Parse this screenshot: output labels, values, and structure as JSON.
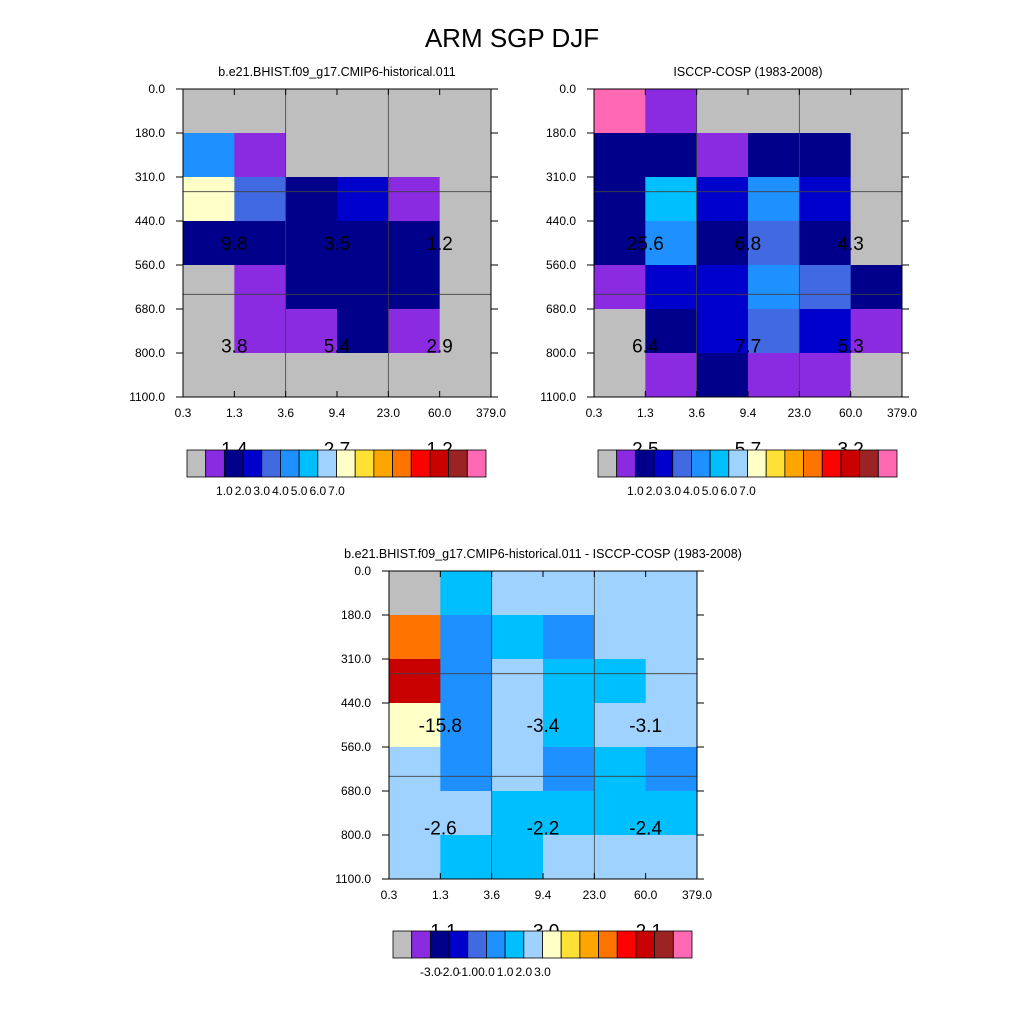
{
  "figure": {
    "title": "ARM SGP DJF"
  },
  "x_ticks": [
    "0.3",
    "1.3",
    "3.6",
    "9.4",
    "23.0",
    "60.0",
    "379.0"
  ],
  "y_ticks": [
    "0.0",
    "180.0",
    "310.0",
    "440.0",
    "560.0",
    "680.0",
    "800.0",
    "1100.0"
  ],
  "colorbars": {
    "abs": {
      "colors": [
        "#BEBEBE",
        "#8A2BE2",
        "#00008B",
        "#0000CD",
        "#4169E1",
        "#1E90FF",
        "#00BFFF",
        "#A0D2FF",
        "#FFFFC8",
        "#FFE135",
        "#FFA500",
        "#FF7300",
        "#FF0000",
        "#C80000",
        "#9B2323",
        "#FF69B4"
      ],
      "labels": [
        "1.0",
        "2.0",
        "3.0",
        "4.0",
        "5.0",
        "6.0",
        "7.0"
      ]
    },
    "diff": {
      "colors": [
        "#BEBEBE",
        "#8A2BE2",
        "#00008B",
        "#0000CD",
        "#4169E1",
        "#1E90FF",
        "#00BFFF",
        "#A0D2FF",
        "#FFFFC8",
        "#FFE135",
        "#FFA500",
        "#FF7300",
        "#FF0000",
        "#C80000",
        "#9B2323",
        "#FF69B4"
      ],
      "labels": [
        "-3.0",
        "-2.0",
        "-1.0",
        "0.0",
        "1.0",
        "2.0",
        "3.0"
      ]
    }
  },
  "chart_data": [
    {
      "type": "heatmap",
      "title": "b.e21.BHIST.f09_g17.CMIP6-historical.011",
      "colorbar": "abs",
      "x_bins": [
        "0.3",
        "1.3",
        "3.6",
        "9.4",
        "23.0",
        "60.0",
        "379.0"
      ],
      "y_bins": [
        "0.0",
        "180.0",
        "310.0",
        "440.0",
        "560.0",
        "680.0",
        "800.0",
        "1100.0"
      ],
      "cells": [
        [
          0,
          0,
          0,
          0,
          0,
          0
        ],
        [
          5,
          1,
          0,
          0,
          0,
          0
        ],
        [
          8,
          4,
          2,
          3,
          1,
          0
        ],
        [
          2,
          2,
          2,
          2,
          2,
          0
        ],
        [
          0,
          1,
          2,
          2,
          2,
          0
        ],
        [
          0,
          1,
          1,
          2,
          1,
          0
        ],
        [
          0,
          0,
          0,
          0,
          0,
          0
        ]
      ],
      "values": [
        {
          "label": "9.8",
          "col": 0,
          "row": 1
        },
        {
          "label": "3.5",
          "col": 1,
          "row": 1
        },
        {
          "label": "1.2",
          "col": 2,
          "row": 1
        },
        {
          "label": "3.8",
          "col": 0,
          "row": 2
        },
        {
          "label": "5.4",
          "col": 1,
          "row": 2
        },
        {
          "label": "2.9",
          "col": 2,
          "row": 2
        },
        {
          "label": "1.4",
          "col": 0,
          "row": 3
        },
        {
          "label": "2.7",
          "col": 1,
          "row": 3
        },
        {
          "label": "1.2",
          "col": 2,
          "row": 3
        }
      ]
    },
    {
      "type": "heatmap",
      "title": "ISCCP-COSP (1983-2008)",
      "colorbar": "abs",
      "x_bins": [
        "0.3",
        "1.3",
        "3.6",
        "9.4",
        "23.0",
        "60.0",
        "379.0"
      ],
      "y_bins": [
        "0.0",
        "180.0",
        "310.0",
        "440.0",
        "560.0",
        "680.0",
        "800.0",
        "1100.0"
      ],
      "cells": [
        [
          15,
          1,
          0,
          0,
          0,
          0
        ],
        [
          2,
          2,
          1,
          2,
          2,
          0
        ],
        [
          2,
          6,
          3,
          5,
          3,
          0
        ],
        [
          2,
          5,
          2,
          4,
          2,
          0
        ],
        [
          1,
          3,
          3,
          5,
          4,
          2
        ],
        [
          0,
          2,
          3,
          4,
          3,
          1
        ],
        [
          0,
          1,
          2,
          1,
          1,
          0
        ]
      ],
      "values": [
        {
          "label": "25.6",
          "col": 0,
          "row": 1
        },
        {
          "label": "6.8",
          "col": 1,
          "row": 1
        },
        {
          "label": "4.3",
          "col": 2,
          "row": 1
        },
        {
          "label": "6.4",
          "col": 0,
          "row": 2
        },
        {
          "label": "7.7",
          "col": 1,
          "row": 2
        },
        {
          "label": "5.3",
          "col": 2,
          "row": 2
        },
        {
          "label": "2.5",
          "col": 0,
          "row": 3
        },
        {
          "label": "5.7",
          "col": 1,
          "row": 3
        },
        {
          "label": "3.2",
          "col": 2,
          "row": 3
        }
      ]
    },
    {
      "type": "heatmap",
      "title": "b.e21.BHIST.f09_g17.CMIP6-historical.011 - ISCCP-COSP (1983-2008)",
      "colorbar": "diff",
      "x_bins": [
        "0.3",
        "1.3",
        "3.6",
        "9.4",
        "23.0",
        "60.0",
        "379.0"
      ],
      "y_bins": [
        "0.0",
        "180.0",
        "310.0",
        "440.0",
        "560.0",
        "680.0",
        "800.0",
        "1100.0"
      ],
      "cells": [
        [
          0,
          6,
          7,
          7,
          7,
          7
        ],
        [
          11,
          5,
          6,
          5,
          7,
          7
        ],
        [
          13,
          5,
          7,
          6,
          6,
          7
        ],
        [
          8,
          5,
          7,
          6,
          7,
          7
        ],
        [
          7,
          5,
          7,
          5,
          6,
          5
        ],
        [
          7,
          7,
          6,
          6,
          6,
          6
        ],
        [
          7,
          6,
          6,
          7,
          7,
          7
        ]
      ],
      "values": [
        {
          "label": "-15.8",
          "col": 0,
          "row": 1
        },
        {
          "label": "-3.4",
          "col": 1,
          "row": 1
        },
        {
          "label": "-3.1",
          "col": 2,
          "row": 1
        },
        {
          "label": "-2.6",
          "col": 0,
          "row": 2
        },
        {
          "label": "-2.2",
          "col": 1,
          "row": 2
        },
        {
          "label": "-2.4",
          "col": 2,
          "row": 2
        },
        {
          "label": "-1.1",
          "col": 0,
          "row": 3
        },
        {
          "label": "-3.0",
          "col": 1,
          "row": 3
        },
        {
          "label": "-2.1",
          "col": 2,
          "row": 3
        }
      ]
    }
  ]
}
